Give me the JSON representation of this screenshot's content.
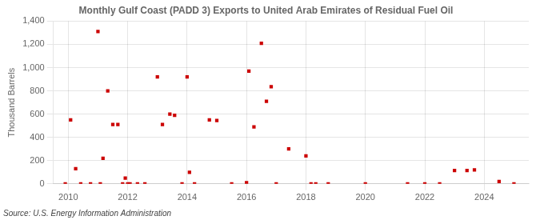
{
  "chart_data": {
    "type": "scatter",
    "title": "Monthly Gulf Coast (PADD 3) Exports to United Arab Emirates of Residual Fuel Oil",
    "ylabel": "Thousand Barrels",
    "annotations": [
      "Source: U.S. Energy Information Administration"
    ],
    "x": [
      2009.9,
      2010.08,
      2010.25,
      2010.42,
      2010.75,
      2011.0,
      2011.08,
      2011.17,
      2011.33,
      2011.5,
      2011.67,
      2011.83,
      2011.92,
      2012.0,
      2012.08,
      2012.33,
      2012.58,
      2013.0,
      2013.17,
      2013.42,
      2013.58,
      2013.83,
      2014.0,
      2014.08,
      2014.25,
      2014.75,
      2015.0,
      2015.5,
      2016.0,
      2016.08,
      2016.25,
      2016.5,
      2016.67,
      2016.83,
      2017.0,
      2017.42,
      2018.0,
      2018.17,
      2018.33,
      2018.75,
      2020.0,
      2021.42,
      2022.0,
      2022.5,
      2023.0,
      2023.42,
      2023.67,
      2024.5,
      2025.0
    ],
    "values": [
      0,
      550,
      130,
      0,
      0,
      1310,
      0,
      220,
      800,
      510,
      510,
      0,
      50,
      0,
      0,
      0,
      0,
      920,
      510,
      600,
      590,
      0,
      920,
      100,
      0,
      550,
      545,
      0,
      10,
      970,
      490,
      1210,
      710,
      835,
      0,
      300,
      240,
      0,
      0,
      0,
      0,
      0,
      0,
      0,
      115,
      115,
      120,
      20,
      0
    ],
    "color": "#cc0000",
    "marker": "square",
    "xlim": [
      2009.5,
      2025.5
    ],
    "xticks": [
      2010,
      2012,
      2014,
      2016,
      2018,
      2020,
      2022,
      2024
    ],
    "ylim": [
      0,
      1400
    ],
    "yticks": [
      0,
      200,
      400,
      600,
      800,
      {
        "value": 1000,
        "label": "1,000"
      },
      {
        "value": 1200,
        "label": "1,200"
      },
      {
        "value": 1400,
        "label": "1,400"
      }
    ],
    "grid": true
  }
}
